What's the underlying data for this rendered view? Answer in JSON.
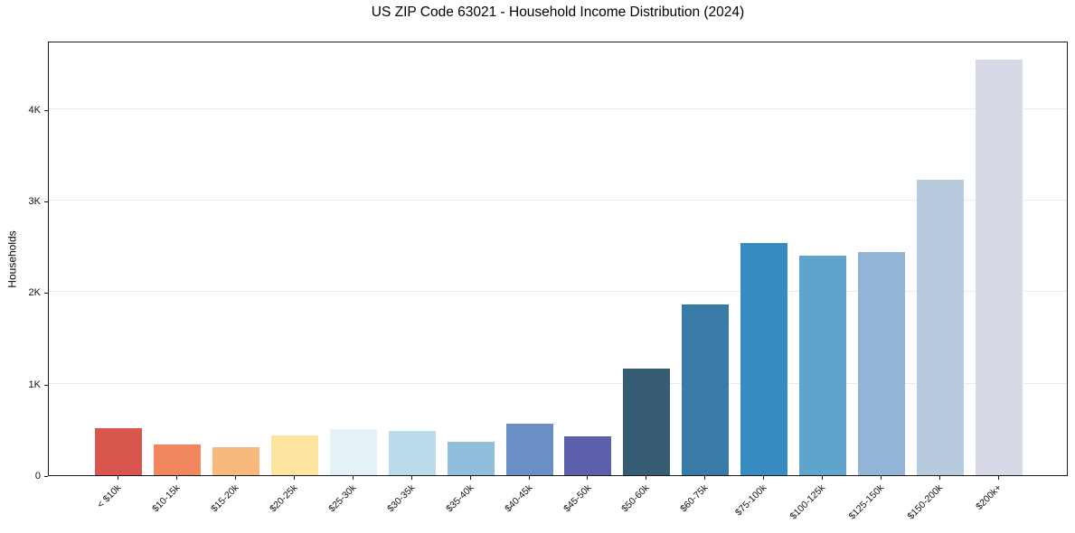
{
  "figure": {
    "background": "#ffffff"
  },
  "chart_data": {
    "type": "bar",
    "title": "US ZIP Code 63021 - Household Income Distribution (2024)",
    "xlabel": "",
    "ylabel": "Households",
    "categories": [
      "< $10k",
      "$10-15k",
      "$15-20k",
      "$20-25k",
      "$25-30k",
      "$30-35k",
      "$35-40k",
      "$40-45k",
      "$45-50k",
      "$50-60k",
      "$60-75k",
      "$75-100k",
      "$100-125k",
      "$125-150k",
      "$150-200k",
      "$200k+"
    ],
    "values": [
      510,
      335,
      305,
      435,
      505,
      480,
      365,
      565,
      420,
      1170,
      1865,
      2540,
      2400,
      2435,
      3230,
      4540
    ],
    "bar_colors": [
      "#d9564f",
      "#f2875f",
      "#fab97c",
      "#fde4a1",
      "#e4f2f6",
      "#badcea",
      "#92bedd",
      "#6a8fc5",
      "#5d5fab",
      "#365d74",
      "#387ba6",
      "#368bc1",
      "#5fa4cc",
      "#92b4d7",
      "#b7cade",
      "#d7dae6"
    ],
    "ylim": [
      0,
      4750
    ],
    "yticks": [
      {
        "value": 0,
        "label": "0"
      },
      {
        "value": 1000,
        "label": "1K"
      },
      {
        "value": 2000,
        "label": "2K"
      },
      {
        "value": 3000,
        "label": "3K"
      },
      {
        "value": 4000,
        "label": "4K"
      }
    ],
    "grid": "horizontal",
    "grid_color": "#ebebeb",
    "spine_color": "#1a1a1a",
    "legend": "none",
    "x_tick_rotation_deg": 45
  }
}
